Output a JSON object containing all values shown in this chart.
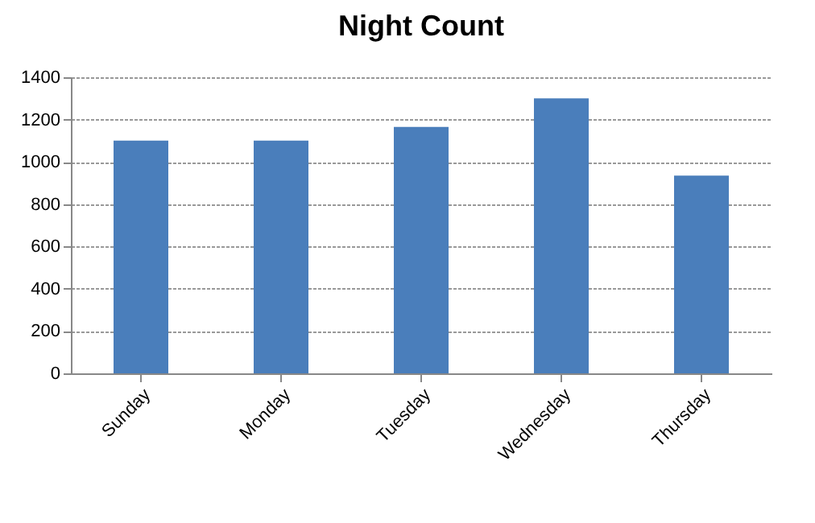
{
  "chart_data": {
    "type": "bar",
    "title": "Night Count",
    "categories": [
      "Sunday",
      "Monday",
      "Tuesday",
      "Wednesday",
      "Thursday"
    ],
    "values": [
      1100,
      1100,
      1165,
      1300,
      935
    ],
    "color": "#4a7ebb",
    "ylim": [
      0,
      1400
    ],
    "yticks": [
      0,
      200,
      400,
      600,
      800,
      1000,
      1200,
      1400
    ],
    "grid": "y"
  }
}
